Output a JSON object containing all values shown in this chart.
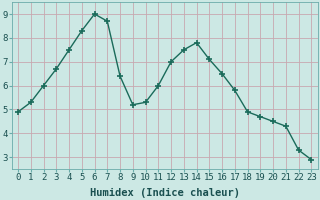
{
  "x": [
    0,
    1,
    2,
    3,
    4,
    5,
    6,
    7,
    8,
    9,
    10,
    11,
    12,
    13,
    14,
    15,
    16,
    17,
    18,
    19,
    20,
    21,
    22,
    23
  ],
  "y": [
    4.9,
    5.3,
    6.0,
    6.7,
    7.5,
    8.3,
    9.0,
    8.7,
    6.4,
    5.2,
    5.3,
    6.0,
    7.0,
    7.5,
    7.8,
    7.1,
    6.5,
    5.8,
    4.9,
    4.7,
    4.5,
    4.3,
    3.3,
    2.9
  ],
  "line_color": "#1a6b5a",
  "marker": "+",
  "bg_color": "#cce8e4",
  "grid_color": "#c8a8b0",
  "xlabel": "Humidex (Indice chaleur)",
  "ylim": [
    2.5,
    9.5
  ],
  "xlim": [
    -0.5,
    23.5
  ],
  "yticks": [
    3,
    4,
    5,
    6,
    7,
    8,
    9
  ],
  "xticks": [
    0,
    1,
    2,
    3,
    4,
    5,
    6,
    7,
    8,
    9,
    10,
    11,
    12,
    13,
    14,
    15,
    16,
    17,
    18,
    19,
    20,
    21,
    22,
    23
  ],
  "tick_label_fontsize": 6.5,
  "xlabel_fontsize": 7.5,
  "line_width": 1.0,
  "marker_size": 4,
  "text_color": "#1a5050"
}
